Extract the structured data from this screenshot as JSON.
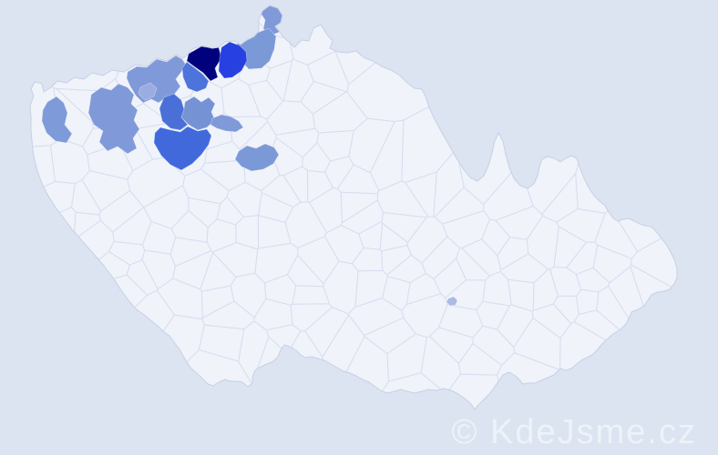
{
  "watermark": {
    "text": "© KdeJsme.cz",
    "color": "#eef2f9"
  },
  "map": {
    "background_color": "#dbe4f0",
    "land_color": "#f0f3fa",
    "district_border_color": "#d8ddef",
    "country_outline_color": "#c7d0e6",
    "highlighted_regions": [
      {
        "id": "region-navy-darkest",
        "color": "#01017e"
      },
      {
        "id": "region-bright-blue",
        "color": "#2640e2"
      },
      {
        "id": "region-north-hook",
        "color": "#8099d9"
      },
      {
        "id": "region-northeast-medium",
        "color": "#7b99d6"
      },
      {
        "id": "region-below-navy",
        "color": "#4d74da"
      },
      {
        "id": "region-star-medium",
        "color": "#7492d4"
      },
      {
        "id": "region-west-royal",
        "color": "#4a70d8"
      },
      {
        "id": "region-big-royal",
        "color": "#4169dc"
      },
      {
        "id": "region-north-band",
        "color": "#8099d9"
      },
      {
        "id": "region-north-band-light",
        "color": "#9bace0"
      },
      {
        "id": "region-west-big-light",
        "color": "#8099d9"
      },
      {
        "id": "region-far-west",
        "color": "#7e9ad8"
      },
      {
        "id": "region-east-arm",
        "color": "#8099d9"
      },
      {
        "id": "region-south-blob",
        "color": "#7b99d6"
      },
      {
        "id": "region-tiny-dot",
        "color": "#a9bbe3"
      }
    ]
  }
}
